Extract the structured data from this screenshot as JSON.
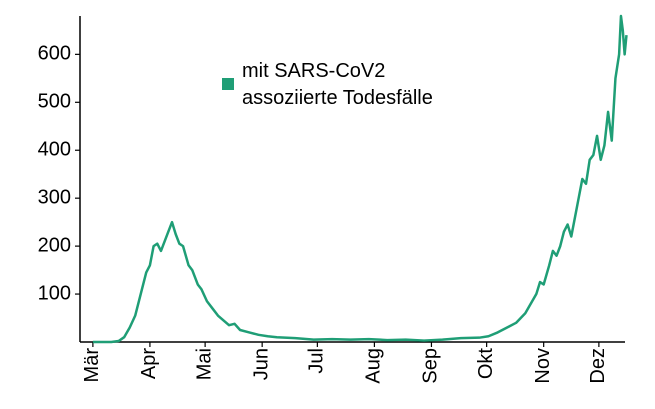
{
  "chart_data": {
    "type": "line",
    "x": [
      0,
      10,
      14,
      17,
      20,
      23,
      26,
      29,
      31,
      33,
      35,
      37,
      39,
      41,
      43,
      45,
      47,
      49,
      52,
      54,
      57,
      59,
      62,
      65,
      68,
      71,
      74,
      77,
      80,
      85,
      90,
      95,
      100,
      110,
      120,
      130,
      140,
      150,
      160,
      170,
      180,
      190,
      200,
      210,
      215,
      220,
      225,
      230,
      235,
      238,
      241,
      243,
      245,
      248,
      250,
      252,
      254,
      256,
      258,
      260,
      262,
      264,
      266,
      268,
      270,
      272,
      274,
      276,
      278,
      280,
      282,
      284,
      286,
      287,
      288,
      289,
      290
    ],
    "series": [
      {
        "name": "mit SARS-CoV2 assoziierte Todesfälle",
        "color": "#1f9e76",
        "values": [
          0,
          0,
          2,
          10,
          30,
          55,
          100,
          145,
          160,
          200,
          205,
          190,
          210,
          230,
          250,
          225,
          205,
          200,
          160,
          150,
          120,
          110,
          85,
          70,
          55,
          45,
          35,
          38,
          25,
          20,
          15,
          12,
          10,
          8,
          5,
          6,
          5,
          6,
          4,
          5,
          3,
          5,
          8,
          9,
          12,
          20,
          30,
          40,
          60,
          80,
          100,
          125,
          120,
          160,
          190,
          180,
          200,
          230,
          245,
          220,
          260,
          300,
          340,
          330,
          380,
          390,
          430,
          380,
          410,
          480,
          420,
          550,
          600,
          680,
          650,
          600,
          640
        ]
      }
    ],
    "xlim": [
      -7,
      293
    ],
    "xticks": [
      {
        "value": 0,
        "label": "Mär"
      },
      {
        "value": 31,
        "label": "Apr"
      },
      {
        "value": 61,
        "label": "Mai"
      },
      {
        "value": 92,
        "label": "Jun"
      },
      {
        "value": 122,
        "label": "Jul"
      },
      {
        "value": 153,
        "label": "Aug"
      },
      {
        "value": 184,
        "label": "Sep"
      },
      {
        "value": 214,
        "label": "Okt"
      },
      {
        "value": 245,
        "label": "Nov"
      },
      {
        "value": 275,
        "label": "Dez"
      }
    ],
    "ylim": [
      0,
      680
    ],
    "yticks": [
      100,
      200,
      300,
      400,
      500,
      600
    ]
  }
}
